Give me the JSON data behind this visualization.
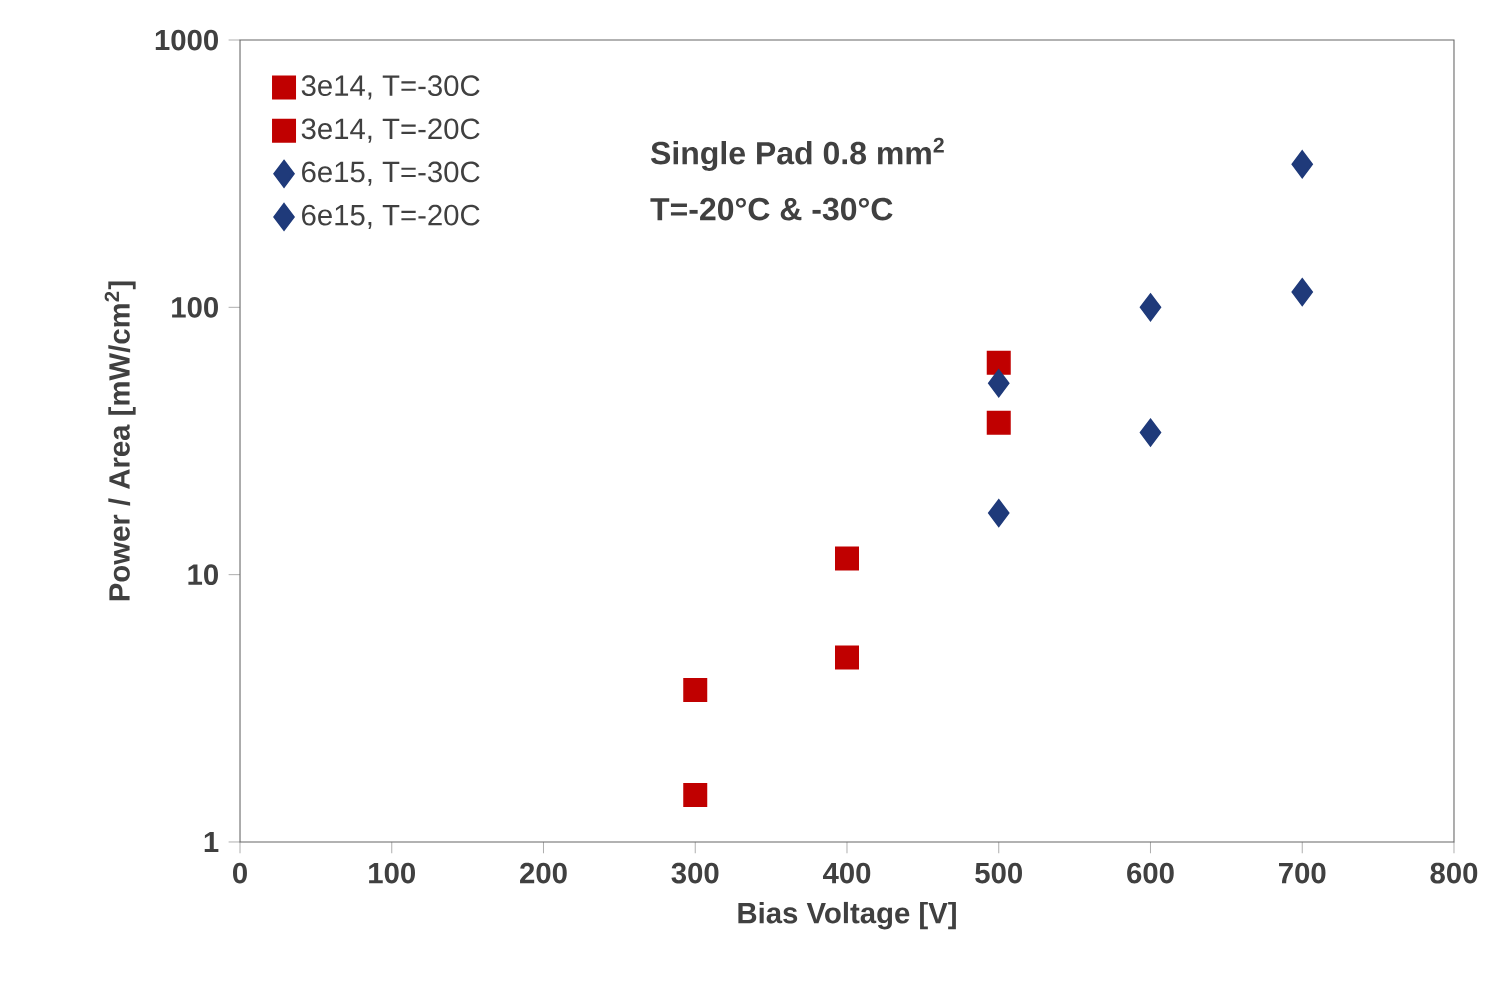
{
  "chart_data": {
    "type": "scatter",
    "xlabel": "Bias Voltage [V]",
    "ylabel": "Power / Area [mW/cm$^{2}$]",
    "annotations": [
      "Single Pad 0.8 mm$^{2}$",
      "T=-20°C & -30°C"
    ],
    "x": [
      300,
      400,
      500,
      600,
      700
    ],
    "series": [
      {
        "name": "3e14, T=-30C",
        "color": "#c00000",
        "marker": "square",
        "values": [
          1.5,
          4.9,
          37,
          null,
          null
        ]
      },
      {
        "name": "3e14, T=-20C",
        "color": "#c00000",
        "marker": "square",
        "values": [
          3.7,
          11.5,
          62,
          null,
          null
        ]
      },
      {
        "name": "6e15, T=-30C",
        "color": "#1f3a7a",
        "marker": "diamond",
        "values": [
          null,
          null,
          17,
          34,
          114
        ]
      },
      {
        "name": "6e15, T=-20C",
        "color": "#1f3a7a",
        "marker": "diamond",
        "values": [
          null,
          null,
          52,
          100,
          343
        ]
      }
    ],
    "xlim": [
      0,
      800
    ],
    "xticks": [
      0,
      100,
      200,
      300,
      400,
      500,
      600,
      700,
      800
    ],
    "ylim": [
      1,
      1000
    ],
    "yticks": [
      1,
      10,
      100,
      1000
    ],
    "log": "y",
    "grid": false,
    "legend": "top left"
  }
}
